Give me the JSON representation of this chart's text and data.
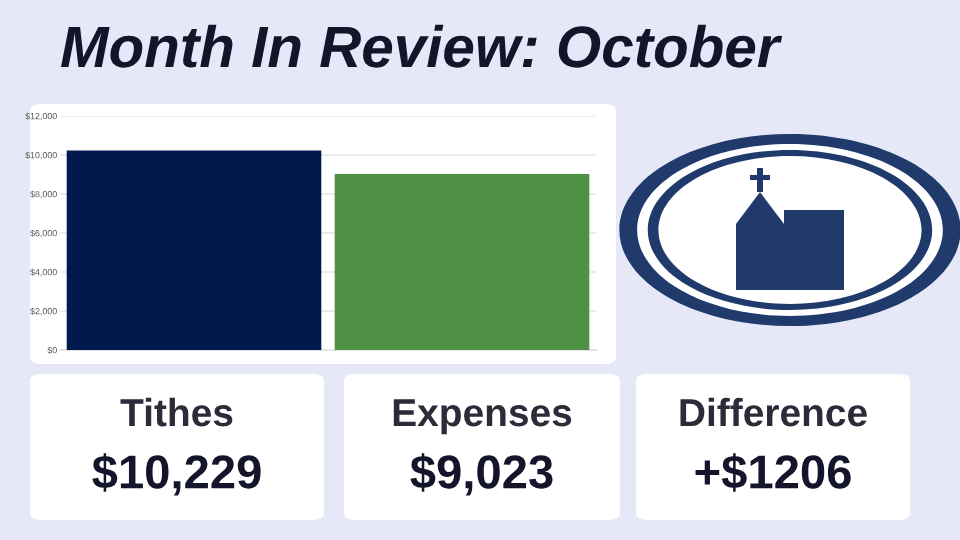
{
  "chart_data": {
    "type": "bar",
    "title": "Month In Review: October",
    "categories": [
      null,
      null
    ],
    "values": [
      10229,
      9023
    ],
    "colors": [
      "#001a4d",
      "#4e9145"
    ],
    "ylim": [
      0,
      12000
    ],
    "yticks": [
      {
        "value": 0,
        "label": "$0"
      },
      {
        "value": 2000,
        "label": "$2,000"
      },
      {
        "value": 4000,
        "label": "$4,000"
      },
      {
        "value": 6000,
        "label": "$6,000"
      },
      {
        "value": 8000,
        "label": "$8,000"
      },
      {
        "value": 10000,
        "label": "$10,000"
      },
      {
        "value": 12000,
        "label": "$12,000"
      }
    ],
    "grid": "y",
    "annotations": [
      "Tithes",
      "$10,229",
      "Expenses",
      "$9,023",
      "Difference",
      "+$1206"
    ]
  }
}
